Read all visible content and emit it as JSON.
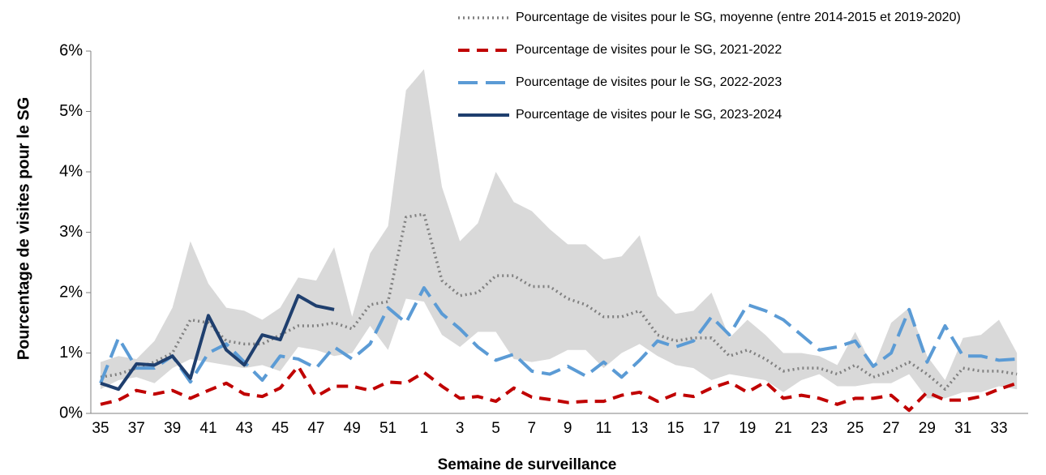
{
  "chart_data": {
    "type": "line",
    "y_label": "Pourcentage de visites pour le SG",
    "x_label": "Semaine de surveillance",
    "categories": [
      "35",
      null,
      "37",
      null,
      "39",
      null,
      "41",
      null,
      "43",
      null,
      "45",
      null,
      "47",
      null,
      "49",
      null,
      "51",
      null,
      "1",
      null,
      "3",
      null,
      "5",
      null,
      "7",
      null,
      "9",
      null,
      "11",
      null,
      "13",
      null,
      "15",
      null,
      "17",
      null,
      "19",
      null,
      "21",
      null,
      "23",
      null,
      "25",
      null,
      "27",
      null,
      "29",
      null,
      "31",
      null,
      "33",
      null
    ],
    "ylim": [
      0,
      6
    ],
    "yticks": [
      {
        "value": 0,
        "label": "0%"
      },
      {
        "value": 1,
        "label": "1%"
      },
      {
        "value": 2,
        "label": "2%"
      },
      {
        "value": 3,
        "label": "3%"
      },
      {
        "value": 4,
        "label": "4%"
      },
      {
        "value": 5,
        "label": "5%"
      },
      {
        "value": 6,
        "label": "6%"
      }
    ],
    "band": {
      "color": "#d9d9d9",
      "upper": [
        0.85,
        0.95,
        0.9,
        1.2,
        1.75,
        2.85,
        2.15,
        1.75,
        1.7,
        1.55,
        1.75,
        2.25,
        2.2,
        2.75,
        1.6,
        2.65,
        3.1,
        5.35,
        5.7,
        3.75,
        2.85,
        3.15,
        4.0,
        3.5,
        3.35,
        3.05,
        2.8,
        2.8,
        2.55,
        2.6,
        2.95,
        1.95,
        1.65,
        1.7,
        2.0,
        1.25,
        1.55,
        1.3,
        1.0,
        1.0,
        0.95,
        0.8,
        1.35,
        0.75,
        1.5,
        1.75,
        0.95,
        0.55,
        1.25,
        1.3,
        1.55,
        1.0
      ],
      "lower": [
        0.4,
        0.55,
        0.6,
        0.5,
        0.75,
        0.9,
        0.85,
        0.8,
        0.75,
        0.8,
        0.7,
        1.1,
        1.05,
        0.95,
        1.0,
        1.45,
        1.05,
        1.9,
        1.85,
        1.3,
        1.1,
        1.35,
        1.35,
        0.9,
        0.85,
        0.9,
        1.05,
        1.05,
        0.75,
        1.0,
        1.15,
        0.95,
        0.8,
        0.75,
        0.55,
        0.65,
        0.6,
        0.55,
        0.35,
        0.55,
        0.65,
        0.45,
        0.45,
        0.5,
        0.5,
        0.65,
        0.25,
        0.25,
        0.35,
        0.35,
        0.45,
        0.4
      ]
    },
    "series": [
      {
        "name": "Pourcentage de visites pour le SG, moyenne (entre 2014-2015 et 2019-2020)",
        "color": "#808080",
        "style": "dotted",
        "values": [
          0.6,
          0.65,
          0.75,
          0.85,
          1.0,
          1.55,
          1.5,
          1.2,
          1.15,
          1.15,
          1.3,
          1.45,
          1.45,
          1.5,
          1.4,
          1.8,
          1.85,
          3.25,
          3.3,
          2.2,
          1.95,
          2.0,
          2.28,
          2.28,
          2.1,
          2.1,
          1.9,
          1.8,
          1.6,
          1.6,
          1.7,
          1.3,
          1.2,
          1.25,
          1.25,
          0.95,
          1.05,
          0.9,
          0.7,
          0.75,
          0.75,
          0.65,
          0.8,
          0.6,
          0.7,
          0.85,
          0.65,
          0.4,
          0.75,
          0.7,
          0.7,
          0.65
        ]
      },
      {
        "name": "Pourcentage de visites pour le SG, 2021-2022",
        "color": "#c00000",
        "style": "dashed",
        "values": [
          0.15,
          0.22,
          0.38,
          0.32,
          0.38,
          0.25,
          0.38,
          0.5,
          0.32,
          0.28,
          0.42,
          0.78,
          0.28,
          0.45,
          0.45,
          0.38,
          0.52,
          0.5,
          0.68,
          0.45,
          0.25,
          0.28,
          0.2,
          0.42,
          0.27,
          0.23,
          0.18,
          0.2,
          0.2,
          0.3,
          0.35,
          0.2,
          0.32,
          0.28,
          0.42,
          0.52,
          0.35,
          0.52,
          0.25,
          0.3,
          0.25,
          0.15,
          0.25,
          0.25,
          0.3,
          0.05,
          0.35,
          0.22,
          0.22,
          0.28,
          0.4,
          0.5
        ]
      },
      {
        "name": "Pourcentage de visites pour le SG, 2022-2023",
        "color": "#5b9bd5",
        "style": "longdash",
        "values": [
          0.5,
          1.25,
          0.75,
          0.75,
          0.95,
          0.52,
          1.0,
          1.15,
          0.85,
          0.55,
          0.95,
          0.9,
          0.75,
          1.1,
          0.9,
          1.15,
          1.75,
          1.5,
          2.08,
          1.65,
          1.4,
          1.1,
          0.88,
          0.98,
          0.7,
          0.65,
          0.78,
          0.62,
          0.85,
          0.6,
          0.88,
          1.2,
          1.1,
          1.2,
          1.6,
          1.3,
          1.8,
          1.7,
          1.55,
          1.3,
          1.05,
          1.1,
          1.2,
          0.78,
          1.0,
          1.72,
          0.85,
          1.45,
          0.95,
          0.95,
          0.88,
          0.9
        ]
      },
      {
        "name": "Pourcentage de visites pour le SG, 2023-2024",
        "color": "#1f3f6e",
        "style": "solid",
        "values": [
          0.5,
          0.4,
          0.82,
          0.8,
          0.95,
          0.58,
          1.62,
          1.05,
          0.8,
          1.3,
          1.22,
          1.95,
          1.78,
          1.72,
          null,
          null,
          null,
          null,
          null,
          null,
          null,
          null,
          null,
          null,
          null,
          null,
          null,
          null,
          null,
          null,
          null,
          null,
          null,
          null,
          null,
          null,
          null,
          null,
          null,
          null,
          null,
          null,
          null,
          null,
          null,
          null,
          null,
          null,
          null,
          null,
          null,
          null
        ]
      }
    ]
  }
}
